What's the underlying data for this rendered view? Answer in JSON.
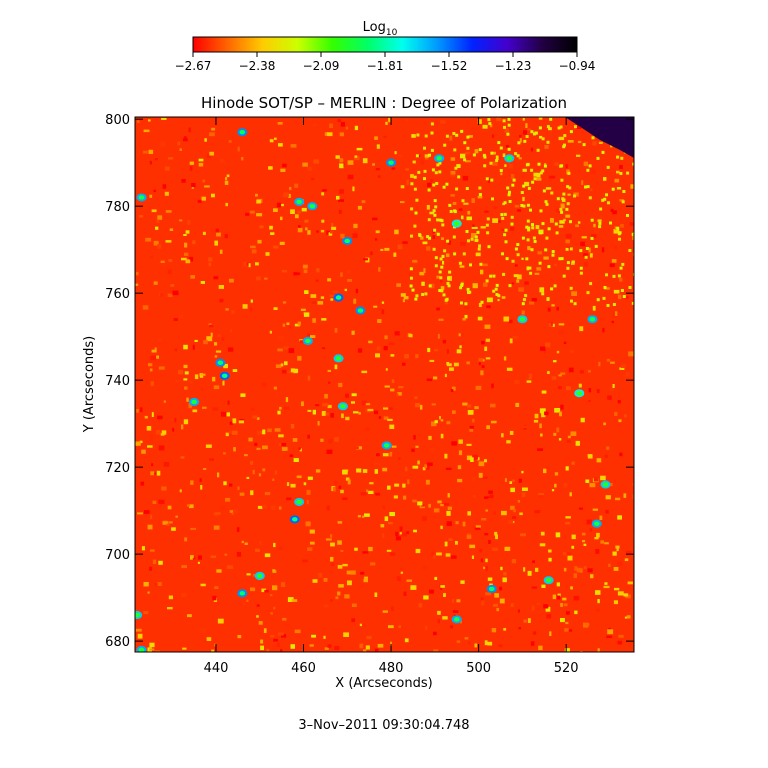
{
  "chart_data": {
    "type": "heatmap",
    "title": "Hinode SOT/SP – MERLIN : Degree of Polarization",
    "xlabel": "X (Arcseconds)",
    "ylabel": "Y (Arcseconds)",
    "xlim": [
      421.5,
      535.5
    ],
    "ylim": [
      677.5,
      800.5
    ],
    "x_ticks": [
      440,
      460,
      480,
      500,
      520
    ],
    "y_ticks": [
      680,
      700,
      720,
      740,
      760,
      780,
      800
    ],
    "colorbar": {
      "label_base": "Log",
      "label_subscript": "10",
      "range": [
        -2.67,
        -0.94
      ],
      "ticks": [
        "−2.67",
        "−2.38",
        "−2.09",
        "−1.81",
        "−1.52",
        "−1.23",
        "−0.94"
      ],
      "colormap": [
        "#ff0000",
        "#ff6600",
        "#ffcc00",
        "#ccff00",
        "#33ff00",
        "#00ff66",
        "#00ffee",
        "#0099ff",
        "#0022ff",
        "#4400cc",
        "#220044",
        "#000000"
      ]
    },
    "background_level": -2.55,
    "features": [
      {
        "x": 446,
        "y": 797,
        "value": -1.9
      },
      {
        "x": 423,
        "y": 782,
        "value": -1.95
      },
      {
        "x": 459,
        "y": 781,
        "value": -1.95
      },
      {
        "x": 462,
        "y": 780,
        "value": -1.95
      },
      {
        "x": 470,
        "y": 772,
        "value": -1.9
      },
      {
        "x": 468,
        "y": 759,
        "value": -1.85
      },
      {
        "x": 473,
        "y": 756,
        "value": -1.9
      },
      {
        "x": 461,
        "y": 749,
        "value": -1.95
      },
      {
        "x": 468,
        "y": 745,
        "value": -2.0
      },
      {
        "x": 441,
        "y": 744,
        "value": -1.9
      },
      {
        "x": 442,
        "y": 741,
        "value": -1.85
      },
      {
        "x": 435,
        "y": 735,
        "value": -1.95
      },
      {
        "x": 469,
        "y": 734,
        "value": -2.0
      },
      {
        "x": 479,
        "y": 725,
        "value": -1.95
      },
      {
        "x": 458,
        "y": 708,
        "value": -1.85
      },
      {
        "x": 459,
        "y": 712,
        "value": -2.0
      },
      {
        "x": 446,
        "y": 691,
        "value": -1.9
      },
      {
        "x": 450,
        "y": 695,
        "value": -2.0
      },
      {
        "x": 495,
        "y": 685,
        "value": -1.95
      },
      {
        "x": 503,
        "y": 692,
        "value": -1.9
      },
      {
        "x": 516,
        "y": 694,
        "value": -2.0
      },
      {
        "x": 510,
        "y": 754,
        "value": -2.0
      },
      {
        "x": 526,
        "y": 754,
        "value": -1.95
      },
      {
        "x": 527,
        "y": 707,
        "value": -1.95
      },
      {
        "x": 529,
        "y": 716,
        "value": -2.0
      },
      {
        "x": 523,
        "y": 737,
        "value": -2.05
      },
      {
        "x": 491,
        "y": 791,
        "value": -1.95
      },
      {
        "x": 507,
        "y": 791,
        "value": -2.0
      },
      {
        "x": 495,
        "y": 776,
        "value": -2.05
      },
      {
        "x": 422,
        "y": 686,
        "value": -2.0
      },
      {
        "x": 423,
        "y": 678,
        "value": -1.95
      },
      {
        "x": 480,
        "y": 790,
        "value": -1.9
      }
    ],
    "off_limb_corner": {
      "region": "top-right",
      "value": -1.1
    }
  },
  "footer": {
    "timestamp": "3–Nov–2011 09:30:04.748"
  }
}
